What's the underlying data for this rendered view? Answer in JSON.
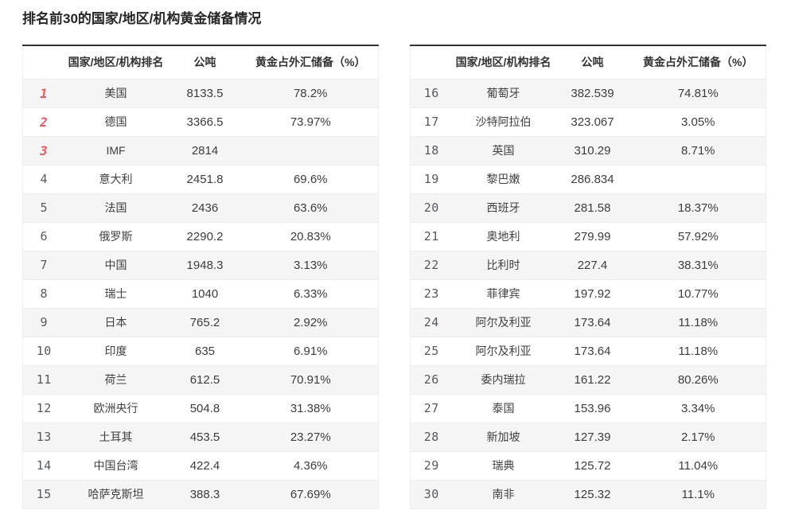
{
  "page": {
    "title": "排名前30的国家/地区/机构黄金储备情况"
  },
  "columns": {
    "rank": "",
    "country": "国家/地区/机构排名",
    "tons": "公吨",
    "pct": "黄金占外汇储备（%）"
  },
  "colors": {
    "rank_top_accent": "#ec5a5f",
    "rank_default": "#56595d",
    "table_top_border": "#333333",
    "alt_row_bg": "#f5f5f5",
    "cell_text": "#3c3c3c"
  },
  "tables": [
    {
      "name": "ranks-1-15",
      "rows": [
        {
          "rank": "1",
          "name": "美国",
          "tons": "8133.5",
          "pct": "78.2%"
        },
        {
          "rank": "2",
          "name": "德国",
          "tons": "3366.5",
          "pct": "73.97%"
        },
        {
          "rank": "3",
          "name": "IMF",
          "tons": "2814",
          "pct": ""
        },
        {
          "rank": "4",
          "name": "意大利",
          "tons": "2451.8",
          "pct": "69.6%"
        },
        {
          "rank": "5",
          "name": "法国",
          "tons": "2436",
          "pct": "63.6%"
        },
        {
          "rank": "6",
          "name": "俄罗斯",
          "tons": "2290.2",
          "pct": "20.83%"
        },
        {
          "rank": "7",
          "name": "中国",
          "tons": "1948.3",
          "pct": "3.13%"
        },
        {
          "rank": "8",
          "name": "瑞士",
          "tons": "1040",
          "pct": "6.33%"
        },
        {
          "rank": "9",
          "name": "日本",
          "tons": "765.2",
          "pct": "2.92%"
        },
        {
          "rank": "10",
          "name": "印度",
          "tons": "635",
          "pct": "6.91%"
        },
        {
          "rank": "11",
          "name": "荷兰",
          "tons": "612.5",
          "pct": "70.91%"
        },
        {
          "rank": "12",
          "name": "欧洲央行",
          "tons": "504.8",
          "pct": "31.38%"
        },
        {
          "rank": "13",
          "name": "土耳其",
          "tons": "453.5",
          "pct": "23.27%"
        },
        {
          "rank": "14",
          "name": "中国台湾",
          "tons": "422.4",
          "pct": "4.36%"
        },
        {
          "rank": "15",
          "name": "哈萨克斯坦",
          "tons": "388.3",
          "pct": "67.69%"
        }
      ]
    },
    {
      "name": "ranks-16-30",
      "rows": [
        {
          "rank": "16",
          "name": "葡萄牙",
          "tons": "382.539",
          "pct": "74.81%"
        },
        {
          "rank": "17",
          "name": "沙特阿拉伯",
          "tons": "323.067",
          "pct": "3.05%"
        },
        {
          "rank": "18",
          "name": "英国",
          "tons": "310.29",
          "pct": "8.71%"
        },
        {
          "rank": "19",
          "name": "黎巴嫩",
          "tons": "286.834",
          "pct": ""
        },
        {
          "rank": "20",
          "name": "西班牙",
          "tons": "281.58",
          "pct": "18.37%"
        },
        {
          "rank": "21",
          "name": "奥地利",
          "tons": "279.99",
          "pct": "57.92%"
        },
        {
          "rank": "22",
          "name": "比利时",
          "tons": "227.4",
          "pct": "38.31%"
        },
        {
          "rank": "23",
          "name": "菲律宾",
          "tons": "197.92",
          "pct": "10.77%"
        },
        {
          "rank": "24",
          "name": "阿尔及利亚",
          "tons": "173.64",
          "pct": "11.18%"
        },
        {
          "rank": "25",
          "name": "阿尔及利亚",
          "tons": "173.64",
          "pct": "11.18%"
        },
        {
          "rank": "26",
          "name": "委内瑞拉",
          "tons": "161.22",
          "pct": "80.26%"
        },
        {
          "rank": "27",
          "name": "泰国",
          "tons": "153.96",
          "pct": "3.34%"
        },
        {
          "rank": "28",
          "name": "新加坡",
          "tons": "127.39",
          "pct": "2.17%"
        },
        {
          "rank": "29",
          "name": "瑞典",
          "tons": "125.72",
          "pct": "11.04%"
        },
        {
          "rank": "30",
          "name": "南非",
          "tons": "125.32",
          "pct": "11.1%"
        }
      ]
    }
  ]
}
